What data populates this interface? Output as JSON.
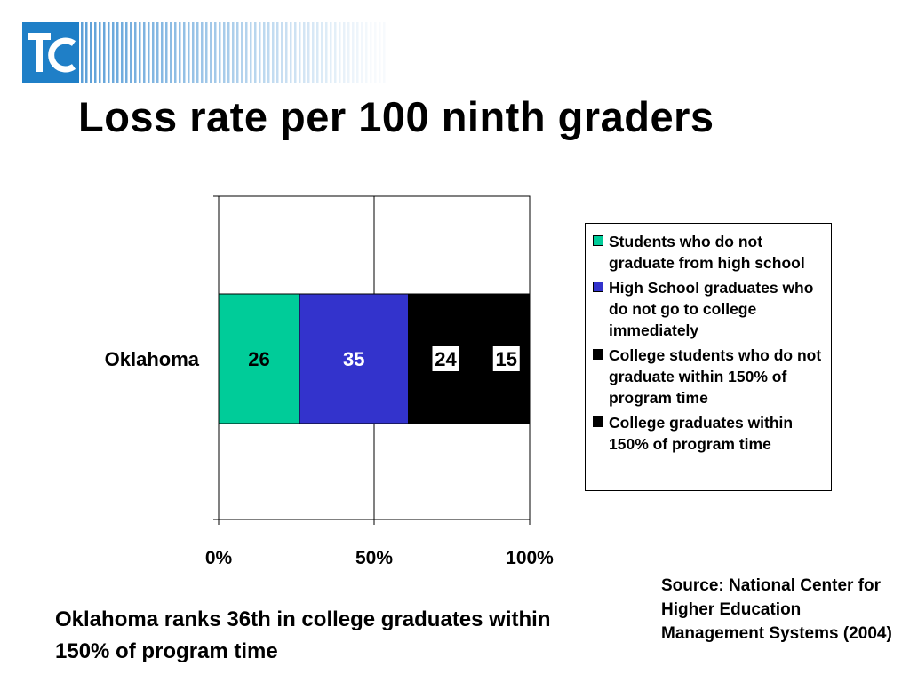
{
  "title": "Loss rate per 100 ninth graders",
  "caption": "Oklahoma ranks 36th in college graduates within 150% of program time",
  "source": "Source: National Center for Higher Education Management Systems (2004)",
  "colors": {
    "logo_blue": "#1f7fc7",
    "stripe_blue": "#5b9fd8"
  },
  "chart_data": {
    "type": "bar",
    "orientation": "horizontal",
    "stacked": "percent",
    "categories": [
      "Oklahoma"
    ],
    "series": [
      {
        "name": "Students who do not graduate from high school",
        "values": [
          26
        ],
        "color": "#00cc99",
        "label_color": "#000000",
        "label_bg": "none"
      },
      {
        "name": "High School graduates who do not go to college immediately",
        "values": [
          35
        ],
        "color": "#3333cc",
        "label_color": "#ffffff",
        "label_bg": "none"
      },
      {
        "name": "College students who do not graduate within 150% of program time",
        "values": [
          24
        ],
        "color": "#000000",
        "label_color": "#000000",
        "label_bg": "#ffffff"
      },
      {
        "name": "College graduates within 150% of program time",
        "values": [
          15
        ],
        "color": "#000000",
        "label_color": "#000000",
        "label_bg": "#ffffff"
      }
    ],
    "x_ticks": [
      "0%",
      "50%",
      "100%"
    ],
    "xlim": [
      0,
      100
    ],
    "grid": true,
    "legend": "right"
  }
}
